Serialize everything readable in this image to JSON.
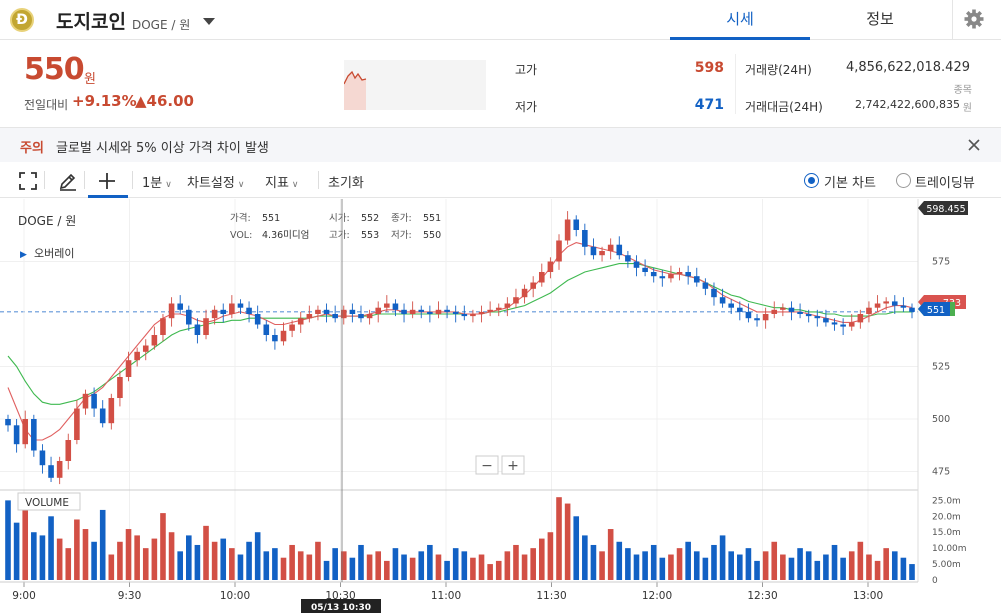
{
  "header": {
    "coin_logo_letter": "Ð",
    "coin_name": "도지코인",
    "pair": "DOGE / 원",
    "tabs": [
      {
        "label": "시세",
        "active": true
      },
      {
        "label": "정보",
        "active": false
      }
    ],
    "icons": {
      "dropdown": "caret-down-icon",
      "settings": "gear-icon"
    }
  },
  "summary": {
    "price": "550",
    "unit": "원",
    "change_label": "전일대비",
    "change_rate": "+9.13%",
    "change_amount": "▲46.00",
    "high_label": "고가",
    "high_value": "598",
    "low_label": "저가",
    "low_value": "471",
    "volume_label": "거래량(24H)",
    "volume_value": "4,856,622,018.429",
    "volume_unit": "종목",
    "amount_label": "거래대금(24H)",
    "amount_value": "2,742,422,600,835",
    "amount_unit": "원"
  },
  "notice": {
    "label": "주의",
    "text": "글로벌 시세와 5% 이상 가격 차이 발생"
  },
  "toolbar": {
    "interval": "1분",
    "chart_settings": "차트설정",
    "indicators": "지표",
    "reset": "초기화",
    "radio_basic": "기본 차트",
    "radio_tradingview": "트레이딩뷰",
    "icons": [
      "fullscreen-icon",
      "pencil-icon",
      "crosshair-icon",
      "chevron-down-icon",
      "close-icon"
    ]
  },
  "chart_legend": {
    "pair": "DOGE / 원",
    "overlay": "오버레이",
    "price_label": "가격:",
    "price_value": "551",
    "vol_label": "VOL:",
    "vol_value": "4.36미디엄",
    "open_label": "시가:",
    "open_value": "552",
    "high_label": "고가:",
    "high_value": "553",
    "close_label": "종가:",
    "close_value": "551",
    "low_label": "저가:",
    "low_value": "550",
    "volume_title": "VOLUME",
    "crosshair_time": "05/13 10:30",
    "zoom_out": "−",
    "zoom_in": "+"
  },
  "chart_data": {
    "type": "candlestick",
    "x_ticks": [
      "9:00",
      "9:30",
      "10:00",
      "10:30",
      "11:00",
      "11:30",
      "12:00",
      "12:30",
      "13:00"
    ],
    "y_ticks": [
      "475",
      "500",
      "525",
      "575"
    ],
    "volume_ticks": [
      "25.0m",
      "20.0m",
      "15.0m",
      "10.00m",
      "5.00m",
      "0"
    ],
    "ylim": [
      470,
      600
    ],
    "volume_ylim": [
      0,
      27
    ],
    "last_price_badge": "551",
    "high_badge": "598.455",
    "ma_badge": "733",
    "close_series": [
      497,
      488,
      500,
      485,
      478,
      472,
      480,
      490,
      505,
      512,
      505,
      498,
      510,
      520,
      528,
      532,
      535,
      540,
      548,
      555,
      552,
      545,
      540,
      548,
      552,
      550,
      555,
      553,
      550,
      545,
      540,
      537,
      542,
      545,
      548,
      550,
      552,
      550,
      548,
      552,
      550,
      548,
      550,
      553,
      555,
      552,
      550,
      552,
      551,
      550,
      552,
      551,
      550,
      549,
      550,
      551,
      552,
      553,
      555,
      558,
      562,
      565,
      570,
      575,
      585,
      595,
      590,
      582,
      578,
      580,
      583,
      578,
      575,
      572,
      570,
      568,
      567,
      569,
      570,
      568,
      565,
      562,
      558,
      555,
      553,
      551,
      548,
      547,
      550,
      552,
      553,
      551,
      550,
      549,
      548,
      546,
      545,
      544,
      546,
      550,
      553,
      555,
      556,
      554,
      553,
      551
    ],
    "ma_fast": [
      515,
      505,
      495,
      490,
      490,
      492,
      495,
      500,
      505,
      510,
      512,
      515,
      520,
      525,
      530,
      535,
      540,
      545,
      548,
      550,
      550,
      549,
      547,
      546,
      547,
      549,
      550,
      551,
      550,
      549,
      547,
      545,
      545,
      546,
      547,
      548,
      549,
      550,
      549,
      549,
      549,
      549,
      550,
      551,
      552,
      552,
      551,
      551,
      551,
      551,
      551,
      551,
      551,
      550,
      550,
      550,
      551,
      552,
      553,
      556,
      559,
      563,
      567,
      572,
      578,
      582,
      584,
      583,
      582,
      581,
      580,
      579,
      577,
      575,
      573,
      571,
      570,
      569,
      569,
      568,
      567,
      565,
      562,
      559,
      557,
      555,
      553,
      551,
      551,
      551,
      551,
      551,
      551,
      550,
      549,
      548,
      547,
      546,
      546,
      547,
      549,
      551,
      553,
      554,
      554,
      553
    ],
    "ma_slow": [
      530,
      525,
      518,
      512,
      508,
      507,
      507,
      508,
      509,
      511,
      513,
      516,
      519,
      522,
      525,
      528,
      531,
      534,
      537,
      540,
      542,
      543,
      544,
      545,
      546,
      546,
      547,
      547,
      548,
      548,
      548,
      548,
      548,
      548,
      548,
      548,
      549,
      549,
      549,
      549,
      549,
      549,
      549,
      550,
      550,
      550,
      550,
      550,
      550,
      550,
      550,
      550,
      550,
      550,
      550,
      550,
      551,
      551,
      552,
      553,
      554,
      556,
      558,
      560,
      563,
      566,
      568,
      570,
      571,
      572,
      573,
      574,
      574,
      574,
      573,
      572,
      571,
      570,
      569,
      568,
      567,
      565,
      563,
      561,
      559,
      558,
      556,
      555,
      554,
      553,
      553,
      552,
      552,
      551,
      551,
      550,
      550,
      549,
      549,
      549,
      549,
      550,
      550,
      551,
      551,
      551
    ],
    "volumes": [
      25,
      18,
      22,
      15,
      14,
      20,
      13,
      10,
      19,
      16,
      12,
      22,
      8,
      12,
      16,
      14,
      10,
      13,
      21,
      15,
      9,
      14,
      11,
      17,
      12,
      13,
      10,
      8,
      12,
      15,
      9,
      10,
      7,
      11,
      9,
      8,
      12,
      6,
      10,
      9,
      7,
      11,
      8,
      9,
      6,
      10,
      8,
      7,
      9,
      11,
      8,
      6,
      10,
      9,
      7,
      8,
      5,
      6,
      9,
      11,
      8,
      10,
      13,
      15,
      26,
      24,
      20,
      14,
      11,
      9,
      16,
      12,
      10,
      8,
      9,
      11,
      7,
      8,
      10,
      12,
      9,
      7,
      11,
      14,
      9,
      8,
      10,
      6,
      9,
      12,
      8,
      7,
      10,
      9,
      6,
      8,
      11,
      7,
      9,
      12,
      8,
      6,
      10,
      9,
      7,
      5
    ]
  }
}
